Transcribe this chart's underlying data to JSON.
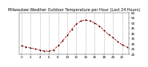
{
  "title": "Milwaukee Weather Outdoor Temperature per Hour (Last 24 Hours)",
  "hours": [
    0,
    1,
    2,
    3,
    4,
    5,
    6,
    7,
    8,
    9,
    10,
    11,
    12,
    13,
    14,
    15,
    16,
    17,
    18,
    19,
    20,
    21,
    22,
    23
  ],
  "temps": [
    28,
    27,
    26,
    25,
    24,
    23,
    23,
    24,
    28,
    33,
    38,
    44,
    49,
    52,
    53,
    52,
    50,
    47,
    43,
    39,
    36,
    32,
    29,
    27
  ],
  "line_color": "#cc0000",
  "marker_color": "#000000",
  "bg_color": "#ffffff",
  "grid_color": "#999999",
  "ylim_min": 20,
  "ylim_max": 60,
  "title_fontsize": 3.5,
  "tick_fontsize": 3.0
}
